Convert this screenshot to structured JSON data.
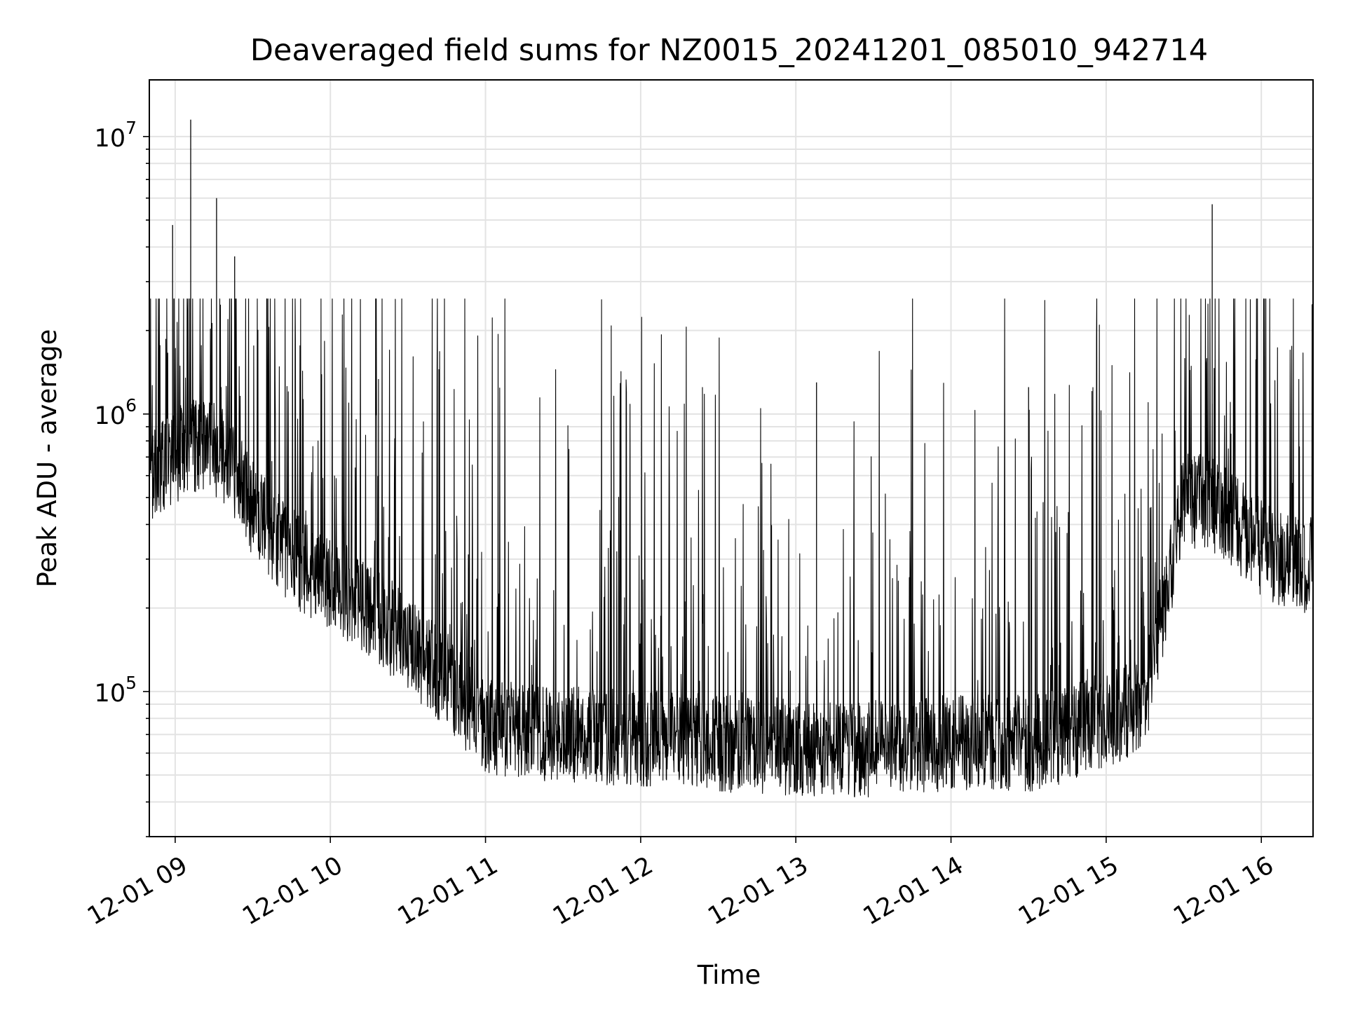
{
  "chart_data": {
    "type": "line",
    "title": "Deaveraged field sums for NZ0015_20241201_085010_942714",
    "xlabel": "Time",
    "ylabel": "Peak ADU - average",
    "yscale": "log",
    "ylim": [
      30000,
      16000000
    ],
    "xlim": [
      "2024-12-01 08:50",
      "2024-12-01 16:20"
    ],
    "x_ticks": [
      "2024-12-01 09:00",
      "2024-12-01 10:00",
      "2024-12-01 11:00",
      "2024-12-01 12:00",
      "2024-12-01 13:00",
      "2024-12-01 14:00",
      "2024-12-01 15:00",
      "2024-12-01 16:00"
    ],
    "x_tick_labels": [
      "12-01 09",
      "12-01 10",
      "12-01 11",
      "12-01 12",
      "12-01 13",
      "12-01 14",
      "12-01 15",
      "12-01 16"
    ],
    "y_ticks": [
      100000,
      1000000,
      10000000
    ],
    "y_tick_labels": [
      {
        "base": "10",
        "exp": "5"
      },
      {
        "base": "10",
        "exp": "6"
      },
      {
        "base": "10",
        "exp": "7"
      }
    ],
    "grid": true,
    "line_color": "#000000",
    "series": [
      {
        "x": [
          "2024-12-01 08:50",
          "2024-12-01 09:00",
          "2024-12-01 09:10",
          "2024-12-01 09:20",
          "2024-12-01 09:30",
          "2024-12-01 09:45",
          "2024-12-01 10:00",
          "2024-12-01 10:15",
          "2024-12-01 10:30",
          "2024-12-01 10:45",
          "2024-12-01 11:00",
          "2024-12-01 11:30",
          "2024-12-01 12:00",
          "2024-12-01 12:30",
          "2024-12-01 13:00",
          "2024-12-01 13:30",
          "2024-12-01 14:00",
          "2024-12-01 14:30",
          "2024-12-01 14:45",
          "2024-12-01 15:00",
          "2024-12-01 15:15",
          "2024-12-01 15:30",
          "2024-12-01 15:45",
          "2024-12-01 16:00",
          "2024-12-01 16:15",
          "2024-12-01 16:20"
        ],
        "y": [
          600000,
          700000,
          800000,
          700000,
          450000,
          300000,
          250000,
          200000,
          150000,
          110000,
          75000,
          70000,
          68000,
          65000,
          63000,
          62000,
          65000,
          65000,
          70000,
          80000,
          90000,
          500000,
          450000,
          330000,
          280000,
          300000
        ]
      }
    ],
    "spikes": [
      {
        "x": "2024-12-01 09:06",
        "y": 11500000
      },
      {
        "x": "2024-12-01 08:59",
        "y": 4800000
      },
      {
        "x": "2024-12-01 09:16",
        "y": 6000000
      },
      {
        "x": "2024-12-01 09:23",
        "y": 3700000
      },
      {
        "x": "2024-12-01 15:41",
        "y": 5700000
      },
      {
        "x": "2024-12-01 10:42",
        "y": 1450000
      },
      {
        "x": "2024-12-01 13:08",
        "y": 1300000
      },
      {
        "x": "2024-12-01 14:30",
        "y": 1250000
      }
    ]
  }
}
